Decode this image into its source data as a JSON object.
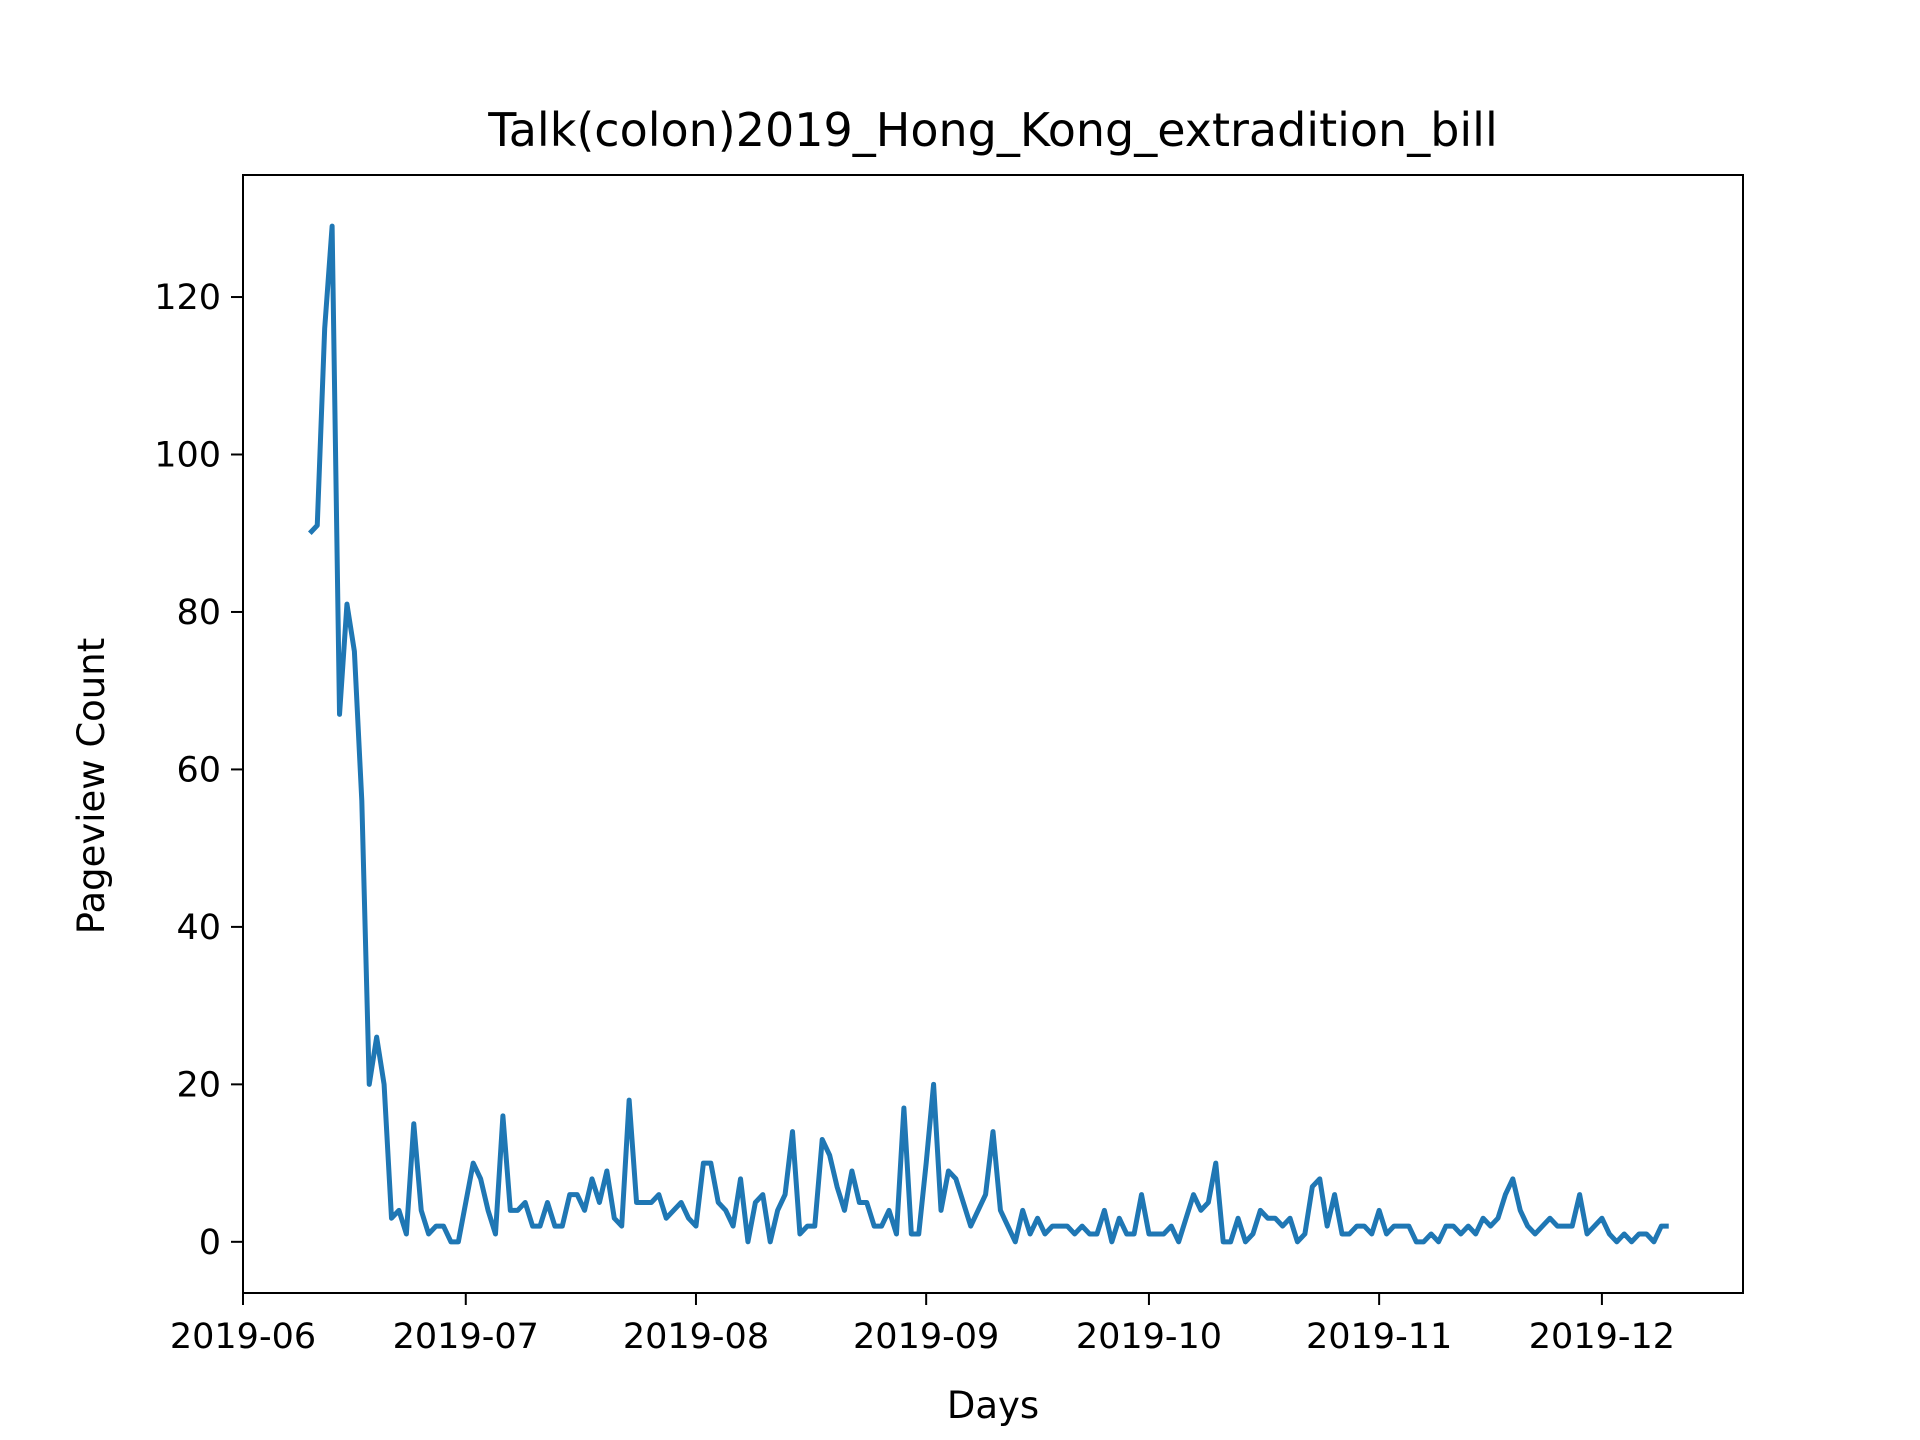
{
  "chart_data": {
    "type": "line",
    "title": "Talk(colon)2019_Hong_Kong_extradition_bill",
    "xlabel": "Days",
    "ylabel": "Pageview Count",
    "x_start": "2019-06-10",
    "x_end": "2019-12-09",
    "xlim": [
      "2019-06-01",
      "2019-12-20"
    ],
    "ylim": [
      -6.5,
      135.5
    ],
    "x_ticks": [
      "2019-06-01",
      "2019-07-01",
      "2019-08-01",
      "2019-09-01",
      "2019-10-01",
      "2019-11-01",
      "2019-12-01"
    ],
    "x_tick_labels": [
      "2019-06",
      "2019-07",
      "2019-08",
      "2019-09",
      "2019-10",
      "2019-11",
      "2019-12"
    ],
    "y_ticks": [
      0,
      20,
      40,
      60,
      80,
      100,
      120
    ],
    "y_tick_labels": [
      "0",
      "20",
      "40",
      "60",
      "80",
      "100",
      "120"
    ],
    "grid": false,
    "line_color": "#1f77b4",
    "series": [
      {
        "values": [
          90,
          91,
          116,
          129,
          67,
          81,
          75,
          56,
          20,
          26,
          20,
          3,
          4,
          1,
          15,
          4,
          1,
          2,
          2,
          0,
          0,
          5,
          10,
          8,
          4,
          1,
          16,
          4,
          4,
          5,
          2,
          2,
          5,
          2,
          2,
          6,
          6,
          4,
          8,
          5,
          9,
          3,
          2,
          18,
          5,
          5,
          5,
          6,
          3,
          4,
          5,
          3,
          2,
          10,
          10,
          5,
          4,
          2,
          8,
          0,
          5,
          6,
          0,
          4,
          6,
          14,
          1,
          2,
          2,
          13,
          11,
          7,
          4,
          9,
          5,
          5,
          2,
          2,
          4,
          1,
          17,
          1,
          1,
          10,
          20,
          4,
          9,
          8,
          5,
          2,
          4,
          6,
          14,
          4,
          2,
          0,
          4,
          1,
          3,
          1,
          2,
          2,
          2,
          1,
          2,
          1,
          1,
          4,
          0,
          3,
          1,
          1,
          6,
          1,
          1,
          1,
          2,
          0,
          3,
          6,
          4,
          5,
          10,
          0,
          0,
          3,
          0,
          1,
          4,
          3,
          3,
          2,
          3,
          0,
          1,
          7,
          8,
          2,
          6,
          1,
          1,
          2,
          2,
          1,
          4,
          1,
          2,
          2,
          2,
          0,
          0,
          1,
          0,
          2,
          2,
          1,
          2,
          1,
          3,
          2,
          3,
          6,
          8,
          4,
          2,
          1,
          2,
          3,
          2,
          2,
          2,
          6,
          1,
          2,
          3,
          1,
          0,
          1,
          0,
          1,
          1,
          0,
          2,
          2
        ]
      }
    ]
  }
}
